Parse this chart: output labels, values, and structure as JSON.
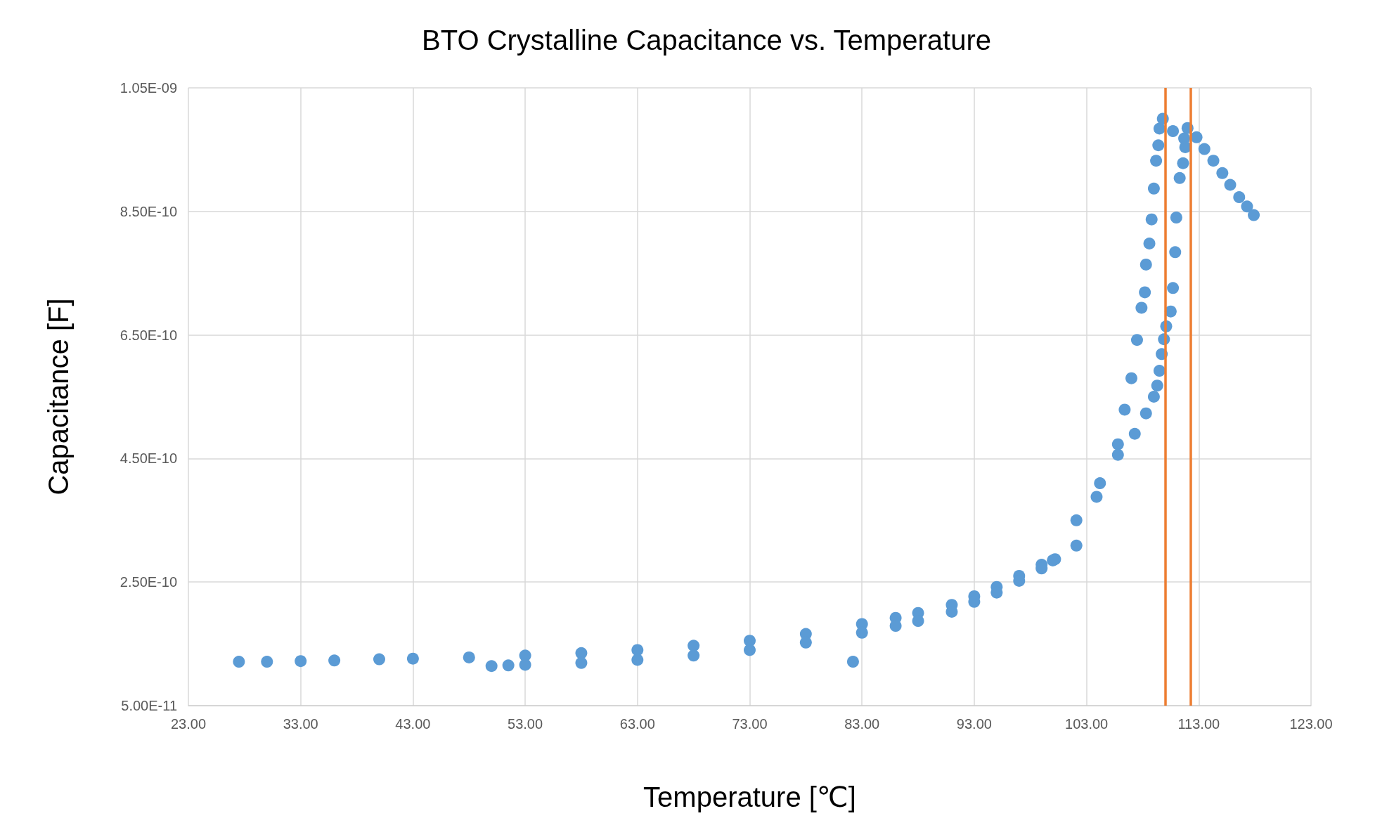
{
  "chart_data": {
    "type": "scatter",
    "title": "BTO Crystalline Capacitance vs. Temperature",
    "xlabel": "Temperature [℃]",
    "ylabel": "Capacitance [F]",
    "xlim": [
      23,
      123
    ],
    "xticks": [
      {
        "value": 23,
        "label": "23.00"
      },
      {
        "value": 33,
        "label": "33.00"
      },
      {
        "value": 43,
        "label": "43.00"
      },
      {
        "value": 53,
        "label": "53.00"
      },
      {
        "value": 63,
        "label": "63.00"
      },
      {
        "value": 73,
        "label": "73.00"
      },
      {
        "value": 83,
        "label": "83.00"
      },
      {
        "value": 93,
        "label": "93.00"
      },
      {
        "value": 103,
        "label": "103.00"
      },
      {
        "value": 113,
        "label": "113.00"
      },
      {
        "value": 123,
        "label": "123.00"
      }
    ],
    "ylim": [
      5e-11,
      1.05e-09
    ],
    "yticks": [
      {
        "value": 5e-11,
        "label": "5.00E-11"
      },
      {
        "value": 2.5e-10,
        "label": "2.50E-10"
      },
      {
        "value": 4.5e-10,
        "label": "4.50E-10"
      },
      {
        "value": 6.5e-10,
        "label": "6.50E-10"
      },
      {
        "value": 8.5e-10,
        "label": "8.50E-10"
      },
      {
        "value": 1.05e-09,
        "label": "1.05E-09"
      }
    ],
    "grid": true,
    "marker": "circle",
    "series": [
      {
        "color": "#5b9bd5",
        "x": [
          27.5,
          30,
          33,
          36,
          40,
          43,
          48,
          53,
          58,
          63,
          68,
          73,
          78,
          83,
          86,
          88,
          91,
          93,
          95,
          97,
          99,
          100.2,
          102.1,
          104.2,
          105.8,
          106.4,
          107,
          107.5,
          107.9,
          108.2,
          108.3,
          108.6,
          108.8,
          109,
          109.2,
          109.4,
          109.5,
          109.8,
          110.7,
          111.7,
          50,
          51.5,
          53,
          58,
          63,
          68,
          73,
          78,
          83,
          86,
          88,
          91,
          93,
          95,
          97,
          99,
          100,
          102.1,
          103.9,
          105.8,
          107.3,
          108.3,
          109,
          109.3,
          109.5,
          109.7,
          109.9,
          110.1,
          110.5,
          110.7,
          110.9,
          111,
          111.3,
          111.6,
          111.8,
          112,
          112.8,
          113.5,
          114.3,
          115.1,
          115.8,
          116.6,
          117.3,
          117.9,
          82.2
        ],
        "values": [
          1.21e-10,
          1.21e-10,
          1.22e-10,
          1.23e-10,
          1.25e-10,
          1.26e-10,
          1.28e-10,
          1.31e-10,
          1.35e-10,
          1.4e-10,
          1.47e-10,
          1.55e-10,
          1.66e-10,
          1.82e-10,
          1.92e-10,
          2e-10,
          2.13e-10,
          2.27e-10,
          2.42e-10,
          2.6e-10,
          2.78e-10,
          2.87e-10,
          3.5e-10,
          4.1e-10,
          4.73e-10,
          5.29e-10,
          5.8e-10,
          6.42e-10,
          6.94e-10,
          7.19e-10,
          7.64e-10,
          7.98e-10,
          8.37e-10,
          8.87e-10,
          9.32e-10,
          9.57e-10,
          9.84e-10,
          1e-09,
          9.8e-10,
          9.68e-10,
          1.14e-10,
          1.15e-10,
          1.16e-10,
          1.19e-10,
          1.24e-10,
          1.31e-10,
          1.4e-10,
          1.52e-10,
          1.68e-10,
          1.79e-10,
          1.87e-10,
          2.02e-10,
          2.18e-10,
          2.33e-10,
          2.52e-10,
          2.72e-10,
          2.85e-10,
          3.09e-10,
          3.88e-10,
          4.56e-10,
          4.9e-10,
          5.23e-10,
          5.5e-10,
          5.68e-10,
          5.92e-10,
          6.19e-10,
          6.43e-10,
          6.64e-10,
          6.88e-10,
          7.26e-10,
          7.84e-10,
          8.4e-10,
          9.04e-10,
          9.28e-10,
          9.54e-10,
          9.85e-10,
          9.7e-10,
          9.51e-10,
          9.32e-10,
          9.12e-10,
          8.93e-10,
          8.73e-10,
          8.58e-10,
          8.44e-10,
          1.21e-10
        ]
      }
    ],
    "ref_lines": [
      {
        "axis": "x",
        "value": 110.0,
        "color": "#ed7d31"
      },
      {
        "axis": "x",
        "value": 112.3,
        "color": "#ed7d31"
      }
    ]
  }
}
